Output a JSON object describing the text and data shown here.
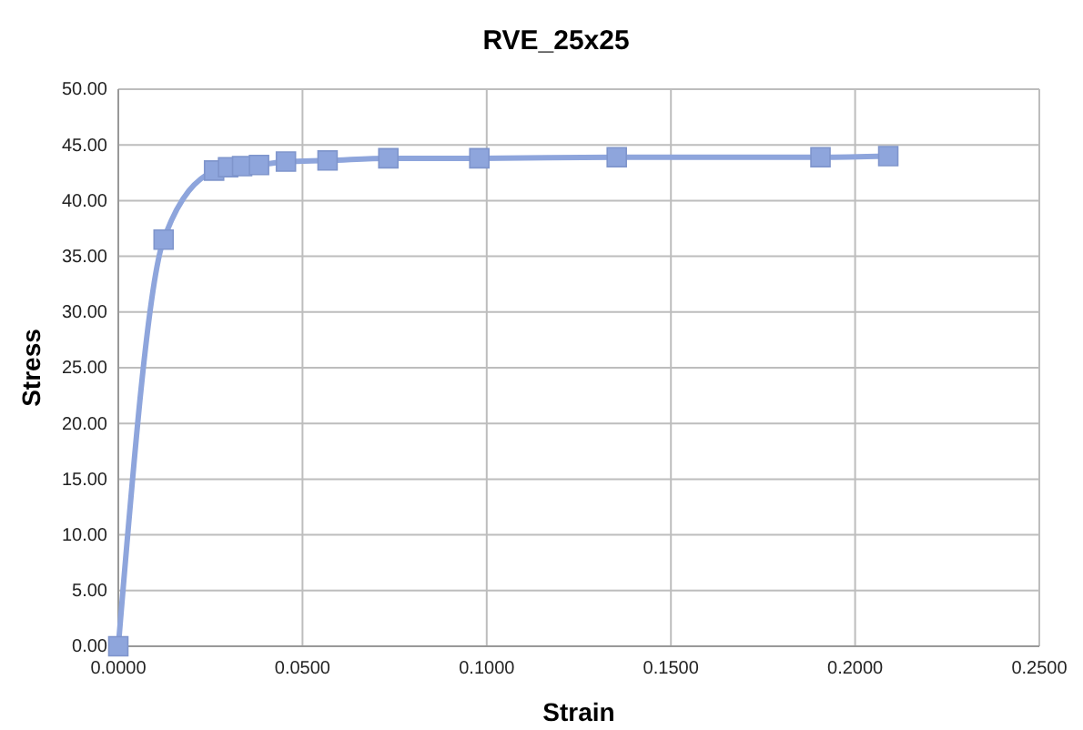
{
  "chart_data": {
    "type": "line",
    "title": "RVE_25x25",
    "xlabel": "Strain",
    "ylabel": "Stress",
    "x": [
      0,
      0.0123,
      0.026,
      0.0298,
      0.0336,
      0.0382,
      0.0455,
      0.0568,
      0.0733,
      0.098,
      0.1353,
      0.1906,
      0.209
    ],
    "series": [
      {
        "color": "#8ea5dc",
        "values": [
          0,
          36.5,
          42.7,
          43.0,
          43.1,
          43.2,
          43.5,
          43.6,
          43.8,
          43.8,
          43.9,
          43.9,
          44.0
        ]
      }
    ],
    "xlim": [
      0,
      0.25
    ],
    "xticks": [
      {
        "value": 0,
        "label": "0.0000"
      },
      {
        "value": 0.05,
        "label": "0.0500"
      },
      {
        "value": 0.1,
        "label": "0.1000"
      },
      {
        "value": 0.15,
        "label": "0.1500"
      },
      {
        "value": 0.2,
        "label": "0.2000"
      },
      {
        "value": 0.25,
        "label": "0.2500"
      }
    ],
    "ylim": [
      0,
      50
    ],
    "yticks": [
      {
        "value": 0,
        "label": "0.00"
      },
      {
        "value": 5,
        "label": "5.00"
      },
      {
        "value": 10,
        "label": "10.00"
      },
      {
        "value": 15,
        "label": "15.00"
      },
      {
        "value": 20,
        "label": "20.00"
      },
      {
        "value": 25,
        "label": "25.00"
      },
      {
        "value": 30,
        "label": "30.00"
      },
      {
        "value": 35,
        "label": "35.00"
      },
      {
        "value": 40,
        "label": "40.00"
      },
      {
        "value": 45,
        "label": "45.00"
      },
      {
        "value": 50,
        "label": "50.00"
      }
    ],
    "grid": true,
    "marker": "square",
    "line_style": "solid"
  }
}
